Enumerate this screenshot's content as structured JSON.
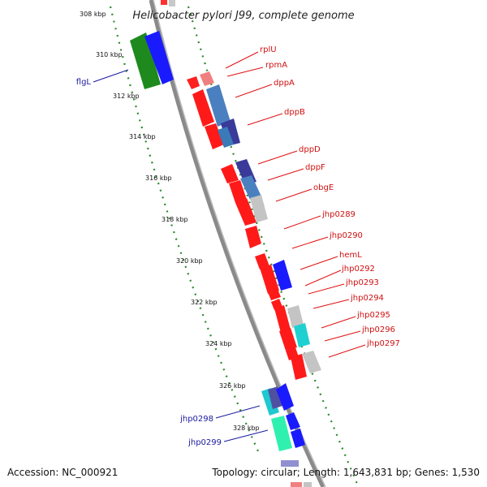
{
  "title": "Helicobacter pylori J99, complete genome",
  "footer": {
    "accession": "Accession: NC_000921",
    "topology": "Topology: circular; Length: 1,643,831 bp; Genes: 1,530"
  },
  "colors": {
    "forward_gene": "#1a1aff",
    "reverse_gene": "#ff1a1a",
    "tick": "#2a8a2a",
    "backbone": "#8a8a8a",
    "label_forward": "#1a1aa0",
    "label_reverse": "#d01010"
  },
  "scale_labels": [
    "308 kbp",
    "310 kbp",
    "312 kbp",
    "314 kbp",
    "316 kbp",
    "318 kbp",
    "320 kbp",
    "322 kbp",
    "324 kbp",
    "326 kbp",
    "328 kbp"
  ],
  "gene_labels_right": [
    "rplU",
    "rpmA",
    "dppA",
    "dppB",
    "dppD",
    "dppF",
    "obgE",
    "jhp0289",
    "jhp0290",
    "hemL",
    "jhp0292",
    "jhp0293",
    "jhp0294",
    "jhp0295",
    "jhp0296",
    "jhp0297"
  ],
  "gene_labels_left": [
    "flgL",
    "jhp0298",
    "jhp0299"
  ]
}
